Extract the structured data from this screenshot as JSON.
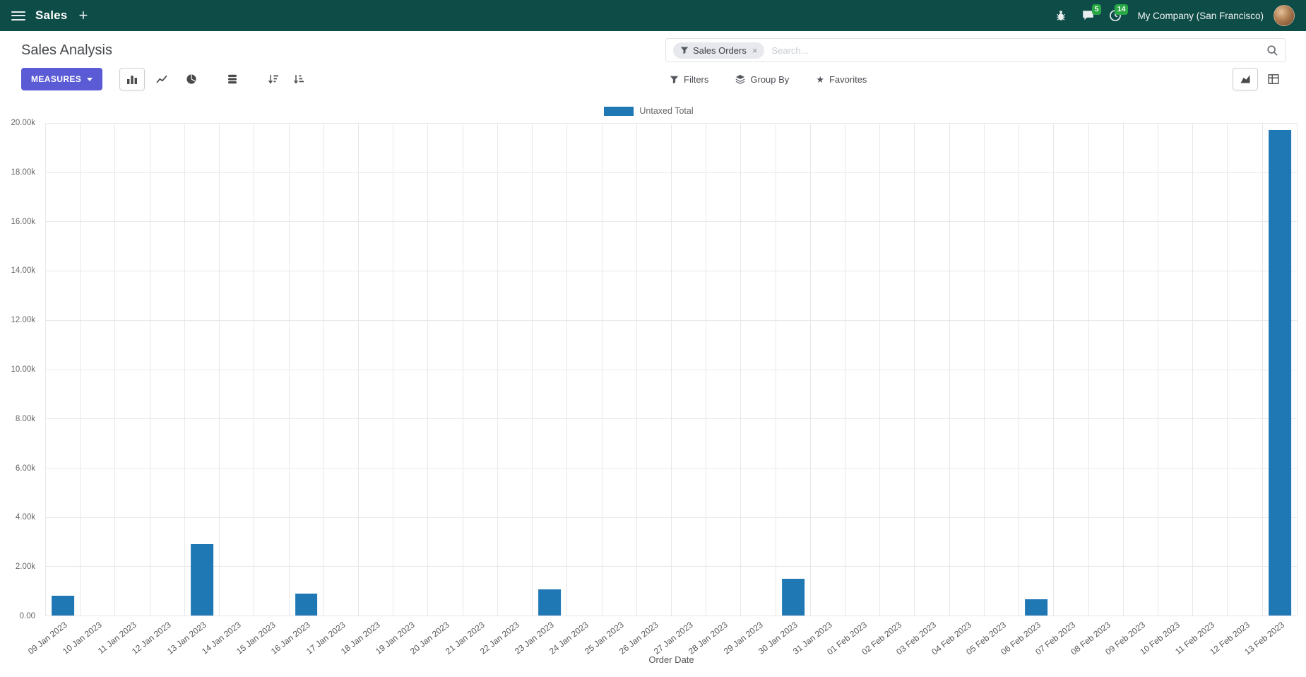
{
  "topbar": {
    "app_name": "Sales",
    "company": "My Company (San Francisco)",
    "messages_badge": "5",
    "activities_badge": "14"
  },
  "icons": {
    "plus": "+",
    "close": "×",
    "star": "★"
  },
  "page": {
    "title": "Sales Analysis"
  },
  "search": {
    "facet_label": "Sales Orders",
    "placeholder": "Search..."
  },
  "toolbar": {
    "measures": "MEASURES",
    "filters": "Filters",
    "group_by": "Group By",
    "favorites": "Favorites"
  },
  "chart_data": {
    "type": "bar",
    "title": "",
    "xlabel": "Order Date",
    "ylabel": "",
    "ylim": [
      0,
      20000
    ],
    "yticks": [
      "0.00",
      "2.00k",
      "4.00k",
      "6.00k",
      "8.00k",
      "10.00k",
      "12.00k",
      "14.00k",
      "16.00k",
      "18.00k",
      "20.00k"
    ],
    "grid": true,
    "legend_position": "top",
    "bar_color": "#1f77b4",
    "categories": [
      "09 Jan 2023",
      "10 Jan 2023",
      "11 Jan 2023",
      "12 Jan 2023",
      "13 Jan 2023",
      "14 Jan 2023",
      "15 Jan 2023",
      "16 Jan 2023",
      "17 Jan 2023",
      "18 Jan 2023",
      "19 Jan 2023",
      "20 Jan 2023",
      "21 Jan 2023",
      "22 Jan 2023",
      "23 Jan 2023",
      "24 Jan 2023",
      "25 Jan 2023",
      "26 Jan 2023",
      "27 Jan 2023",
      "28 Jan 2023",
      "29 Jan 2023",
      "30 Jan 2023",
      "31 Jan 2023",
      "01 Feb 2023",
      "02 Feb 2023",
      "03 Feb 2023",
      "04 Feb 2023",
      "05 Feb 2023",
      "06 Feb 2023",
      "07 Feb 2023",
      "08 Feb 2023",
      "09 Feb 2023",
      "10 Feb 2023",
      "11 Feb 2023",
      "12 Feb 2023",
      "13 Feb 2023"
    ],
    "series": [
      {
        "name": "Untaxed Total",
        "values": [
          800,
          0,
          0,
          0,
          2900,
          0,
          0,
          900,
          0,
          0,
          0,
          0,
          0,
          0,
          1050,
          0,
          0,
          0,
          0,
          0,
          0,
          1500,
          0,
          0,
          0,
          0,
          0,
          0,
          650,
          0,
          0,
          0,
          0,
          0,
          0,
          19700
        ]
      }
    ]
  }
}
